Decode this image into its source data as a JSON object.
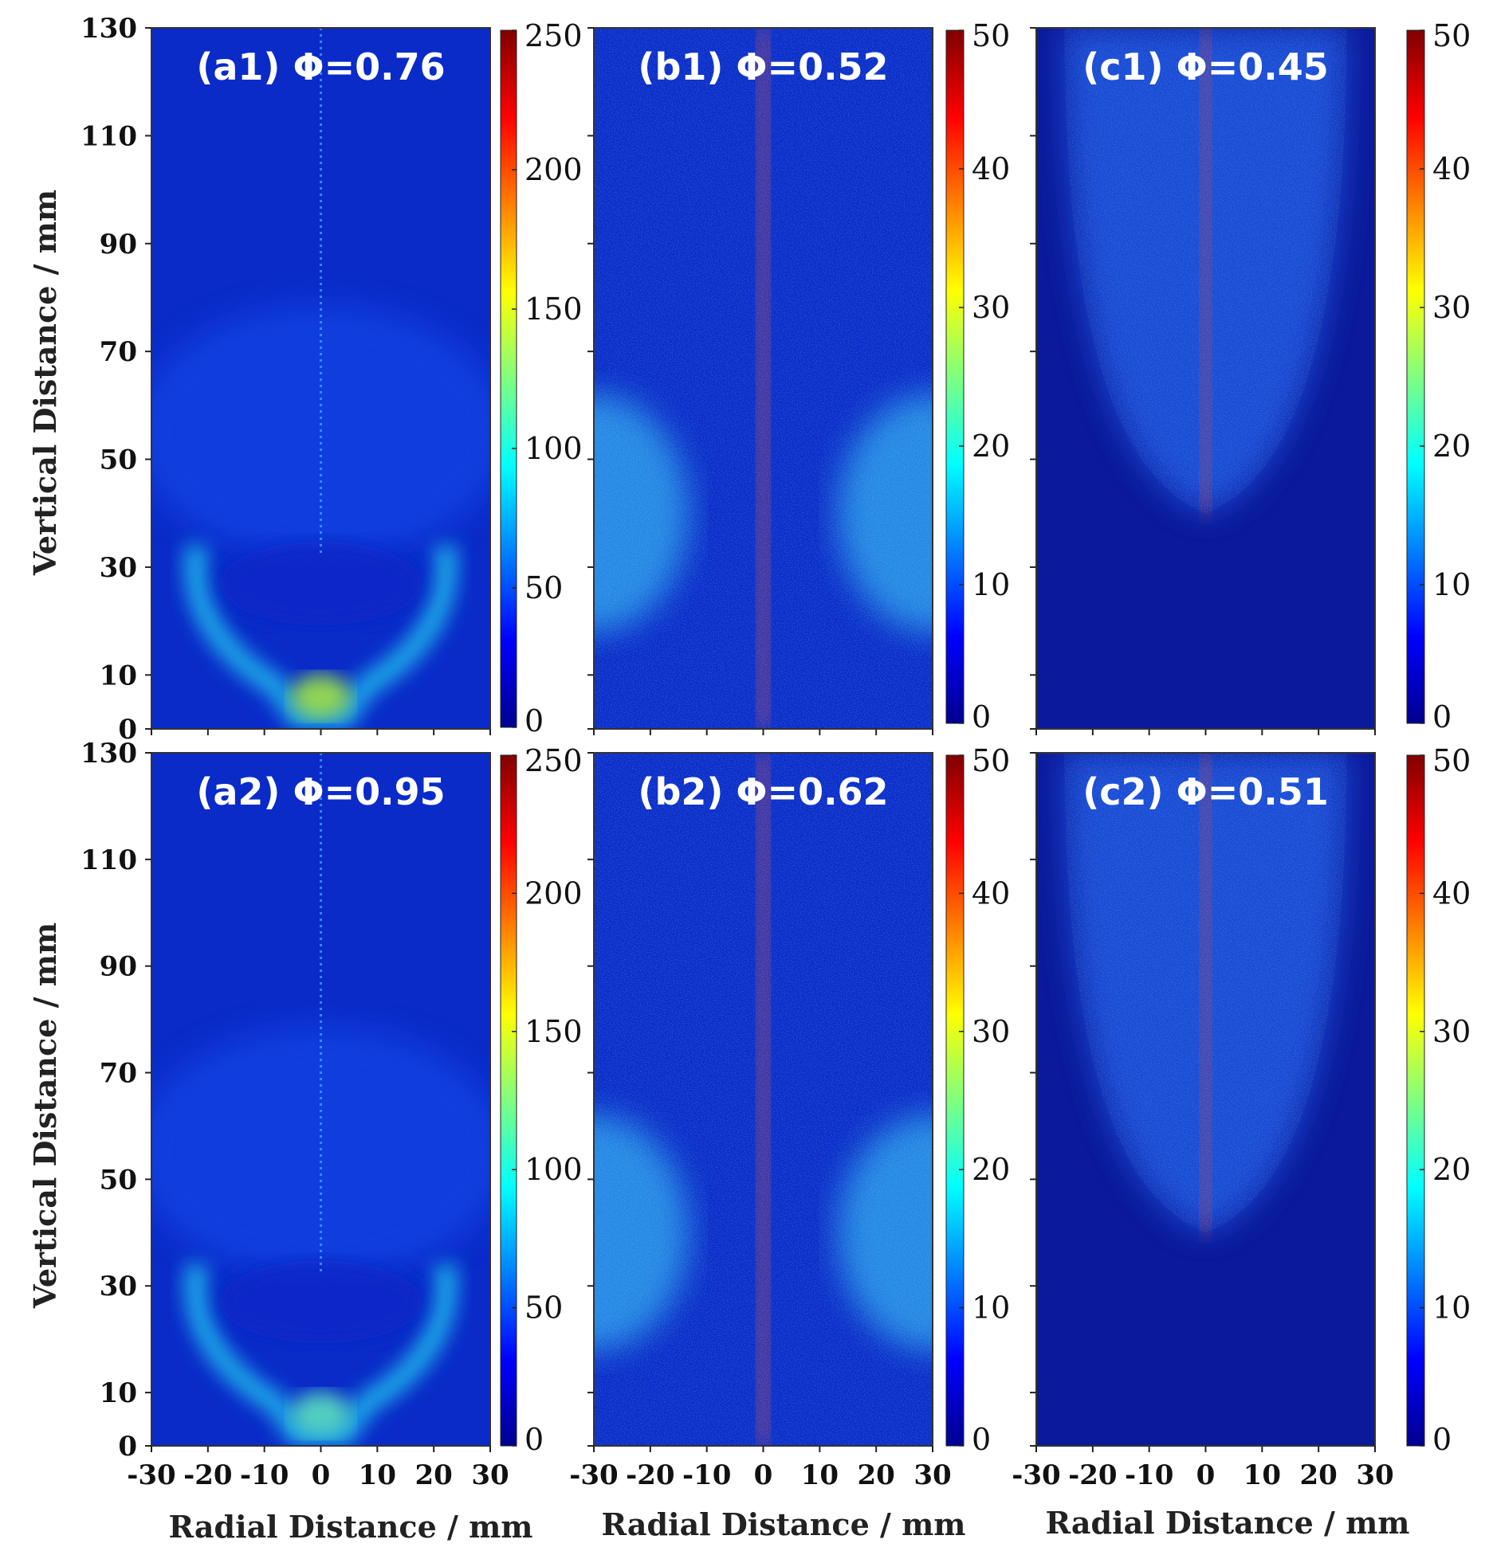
{
  "chart_data": {
    "type": "heatmap",
    "colormap": "jet",
    "xlabel": "Radial Distance / mm",
    "ylabel": "Vertical Distance / mm",
    "xlim": [
      -30,
      30
    ],
    "ylim": [
      0,
      130
    ],
    "xticks": [
      -30,
      -20,
      -10,
      0,
      10,
      20,
      30
    ],
    "yticks": [
      0,
      10,
      30,
      50,
      70,
      90,
      110,
      130
    ],
    "panels": [
      {
        "id": "a1",
        "title": "(a1) Φ=0.76",
        "clim": [
          0,
          250
        ],
        "cticks": [
          0,
          50,
          100,
          150,
          200,
          250
        ],
        "pattern": "lobes",
        "peak_region": "bottom-center",
        "x_range": [
          -30,
          30
        ],
        "y_range": [
          0,
          130
        ]
      },
      {
        "id": "b1",
        "title": "(b1) Φ=0.52",
        "clim": [
          0,
          50
        ],
        "cticks": [
          0,
          10,
          20,
          30,
          40,
          50
        ],
        "pattern": "butterfly",
        "x_range": [
          -30,
          30
        ],
        "y_range": [
          0,
          130
        ]
      },
      {
        "id": "c1",
        "title": "(c1) Φ=0.45",
        "clim": [
          0,
          50
        ],
        "cticks": [
          0,
          10,
          20,
          30,
          40,
          50
        ],
        "pattern": "plume",
        "x_range": [
          -30,
          30
        ],
        "y_range": [
          0,
          130
        ]
      },
      {
        "id": "a2",
        "title": "(a2) Φ=0.95",
        "clim": [
          0,
          250
        ],
        "cticks": [
          0,
          50,
          100,
          150,
          200,
          250
        ],
        "pattern": "lobes",
        "peak_region": "bottom-center",
        "x_range": [
          -30,
          30
        ],
        "y_range": [
          0,
          130
        ]
      },
      {
        "id": "b2",
        "title": "(b2) Φ=0.62",
        "clim": [
          0,
          50
        ],
        "cticks": [
          0,
          10,
          20,
          30,
          40,
          50
        ],
        "pattern": "butterfly",
        "x_range": [
          -30,
          30
        ],
        "y_range": [
          0,
          130
        ]
      },
      {
        "id": "c2",
        "title": "(c2) Φ=0.51",
        "clim": [
          0,
          50
        ],
        "cticks": [
          0,
          10,
          20,
          30,
          40,
          50
        ],
        "pattern": "plume",
        "x_range": [
          -30,
          30
        ],
        "y_range": [
          0,
          130
        ]
      }
    ]
  }
}
